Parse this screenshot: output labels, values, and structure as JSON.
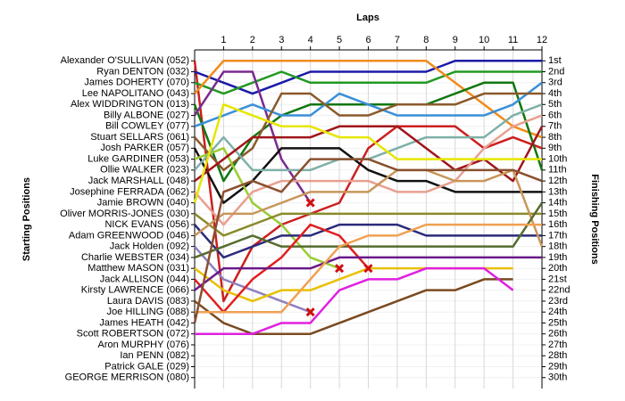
{
  "chart_data": {
    "type": "line",
    "title": "Laps",
    "ylabel": "Starting Positions",
    "y2label": "Finishing Positions",
    "x": [
      0,
      1,
      2,
      3,
      4,
      5,
      6,
      7,
      8,
      9,
      10,
      11,
      12
    ],
    "xlim": [
      0,
      12
    ],
    "xticks": [
      1,
      2,
      3,
      4,
      5,
      6,
      7,
      8,
      9,
      10,
      11,
      12
    ],
    "ylim": [
      31,
      0
    ],
    "grid": true,
    "yticks": [
      {
        "value": 1,
        "label": "Alexander O'SULLIVAN (052)"
      },
      {
        "value": 2,
        "label": "Ryan DENTON (032)"
      },
      {
        "value": 3,
        "label": "James DOHERTY (070)"
      },
      {
        "value": 4,
        "label": "Lee NAPOLITANO (043)"
      },
      {
        "value": 5,
        "label": "Alex WIDDRINGTON (013)"
      },
      {
        "value": 6,
        "label": "Billy ALBONE (027)"
      },
      {
        "value": 7,
        "label": "Bill COWLEY (077)"
      },
      {
        "value": 8,
        "label": "Stuart SELLARS (061)"
      },
      {
        "value": 9,
        "label": "Josh PARKER (057)"
      },
      {
        "value": 10,
        "label": "Luke GARDINER (053)"
      },
      {
        "value": 11,
        "label": "Ollie WALKER (023)"
      },
      {
        "value": 12,
        "label": "Jack MARSHALL (048)"
      },
      {
        "value": 13,
        "label": "Josephine FERRADA (062)"
      },
      {
        "value": 14,
        "label": "Jamie BROWN (040)"
      },
      {
        "value": 15,
        "label": "Oliver MORRIS-JONES (030)"
      },
      {
        "value": 16,
        "label": "NICK EVANS (056)"
      },
      {
        "value": 17,
        "label": "Adam GREENWOOD (046)"
      },
      {
        "value": 18,
        "label": "Jack Holden (092)"
      },
      {
        "value": 19,
        "label": "Charlie WEBSTER (034)"
      },
      {
        "value": 20,
        "label": "Matthew MASON (031)"
      },
      {
        "value": 21,
        "label": "Jack ALLISON (044)"
      },
      {
        "value": 22,
        "label": "Kirsty LAWRENCE (066)"
      },
      {
        "value": 23,
        "label": "Laura DAVIS (083)"
      },
      {
        "value": 24,
        "label": "Joe HILLING (088)"
      },
      {
        "value": 25,
        "label": "James HEATH (042)"
      },
      {
        "value": 26,
        "label": "Scott ROBERTSON (072)"
      },
      {
        "value": 27,
        "label": "Aron MURPHY (076)"
      },
      {
        "value": 28,
        "label": "Ian PENN (082)"
      },
      {
        "value": 29,
        "label": "Patrick GALE (029)"
      },
      {
        "value": 30,
        "label": "GEORGE MERRISON (080)"
      }
    ],
    "y2ticks": [
      {
        "value": 1,
        "label": "1st"
      },
      {
        "value": 2,
        "label": "2nd"
      },
      {
        "value": 3,
        "label": "3rd"
      },
      {
        "value": 4,
        "label": "4th"
      },
      {
        "value": 5,
        "label": "5th"
      },
      {
        "value": 6,
        "label": "6th"
      },
      {
        "value": 7,
        "label": "7th"
      },
      {
        "value": 8,
        "label": "8th"
      },
      {
        "value": 9,
        "label": "9th"
      },
      {
        "value": 10,
        "label": "10th"
      },
      {
        "value": 11,
        "label": "11th"
      },
      {
        "value": 12,
        "label": "12th"
      },
      {
        "value": 13,
        "label": "13th"
      },
      {
        "value": 14,
        "label": "14th"
      },
      {
        "value": 15,
        "label": "15th"
      },
      {
        "value": 16,
        "label": "16th"
      },
      {
        "value": 17,
        "label": "17th"
      },
      {
        "value": 18,
        "label": "18th"
      },
      {
        "value": 19,
        "label": "19th"
      },
      {
        "value": 20,
        "label": "20th"
      },
      {
        "value": 21,
        "label": "21st"
      },
      {
        "value": 22,
        "label": "22nd"
      },
      {
        "value": 23,
        "label": "23rd"
      },
      {
        "value": 24,
        "label": "24th"
      },
      {
        "value": 25,
        "label": "25th"
      },
      {
        "value": 26,
        "label": "26th"
      },
      {
        "value": 27,
        "label": "27th"
      },
      {
        "value": 28,
        "label": "28th"
      },
      {
        "value": 29,
        "label": "29th"
      },
      {
        "value": 30,
        "label": "30th"
      }
    ],
    "series": [
      {
        "color": "#cc1f1f",
        "values": [
          1,
          23,
          18,
          16,
          15,
          14,
          9,
          7,
          7,
          7,
          9,
          8,
          9
        ]
      },
      {
        "color": "#1a1aa8",
        "values": [
          2,
          3,
          4,
          3,
          2,
          2,
          2,
          2,
          2,
          1,
          1,
          1,
          1
        ]
      },
      {
        "color": "#229922",
        "values": [
          3,
          4,
          3,
          2,
          3,
          3,
          3,
          3,
          3,
          2,
          2,
          2,
          2
        ]
      },
      {
        "color": "#f08c1a",
        "values": [
          4,
          1,
          1,
          1,
          1,
          1,
          1,
          1,
          1,
          3,
          5,
          7,
          8
        ]
      },
      {
        "color": "#117711",
        "values": [
          5,
          12,
          8,
          6,
          5,
          5,
          5,
          5,
          5,
          4,
          3,
          3,
          11
        ]
      },
      {
        "color": "#7b2a8f",
        "values": [
          6,
          2,
          2,
          10,
          14,
          null,
          null,
          null,
          null,
          null,
          null,
          null,
          null
        ],
        "retired": true
      },
      {
        "color": "#3a8fd8",
        "values": [
          7,
          6,
          5,
          6,
          6,
          4,
          5,
          6,
          6,
          6,
          6,
          5,
          3
        ]
      },
      {
        "color": "#8b5a2b",
        "values": [
          8,
          11,
          9,
          4,
          4,
          6,
          6,
          5,
          5,
          5,
          4,
          4,
          4
        ]
      },
      {
        "color": "#111111",
        "values": [
          9,
          14,
          12,
          9,
          9,
          9,
          11,
          12,
          12,
          13,
          13,
          13,
          13
        ]
      },
      {
        "color": "#9acd32",
        "values": [
          10,
          9,
          14,
          16,
          19,
          20,
          null,
          null,
          null,
          null,
          null,
          null,
          null
        ],
        "retired": true
      },
      {
        "color": "#7fb0a8",
        "values": [
          11,
          8,
          11,
          11,
          11,
          10,
          10,
          9,
          8,
          8,
          8,
          6,
          5
        ]
      },
      {
        "color": "#a0151a",
        "values": [
          12,
          10,
          8,
          8,
          8,
          7,
          7,
          7,
          9,
          11,
          10,
          12,
          7
        ]
      },
      {
        "color": "#e8a090",
        "values": [
          13,
          16,
          13,
          12,
          12,
          12,
          12,
          13,
          13,
          12,
          9,
          7,
          6
        ]
      },
      {
        "color": "#e6e600",
        "values": [
          14,
          5,
          6,
          7,
          7,
          8,
          8,
          10,
          10,
          10,
          10,
          10,
          10
        ]
      },
      {
        "color": "#8a8a2a",
        "values": [
          15,
          17,
          16,
          15,
          15,
          15,
          15,
          15,
          15,
          15,
          15,
          15,
          15
        ]
      },
      {
        "color": "#2a2a7a",
        "values": [
          16,
          19,
          18,
          17,
          17,
          16,
          16,
          16,
          17,
          17,
          17,
          17,
          17
        ]
      },
      {
        "color": "#c8965a",
        "values": [
          17,
          15,
          15,
          14,
          13,
          13,
          13,
          11,
          11,
          12,
          12,
          11,
          18
        ]
      },
      {
        "color": "#9080c0",
        "values": [
          18,
          21,
          22,
          23,
          24,
          null,
          null,
          null,
          null,
          null,
          null,
          null,
          null
        ],
        "retired": true
      },
      {
        "color": "#556b2f",
        "values": [
          19,
          18,
          17,
          18,
          18,
          18,
          18,
          18,
          18,
          18,
          18,
          18,
          14
        ]
      },
      {
        "color": "#e8c000",
        "values": [
          20,
          22,
          23,
          22,
          22,
          21,
          20,
          20,
          20,
          20,
          20,
          20,
          null
        ]
      },
      {
        "color": "#e02020",
        "values": [
          21,
          24,
          21,
          19,
          16,
          17,
          20,
          null,
          null,
          null,
          null,
          null,
          null
        ],
        "retired": true
      },
      {
        "color": "#6a1a8a",
        "values": [
          22,
          20,
          20,
          20,
          20,
          19,
          19,
          19,
          19,
          19,
          19,
          19,
          19
        ]
      },
      {
        "color": "#7a4a20",
        "values": [
          23,
          25,
          26,
          26,
          26,
          25,
          24,
          23,
          22,
          22,
          21,
          21,
          null
        ]
      },
      {
        "color": "#f0a050",
        "values": [
          24,
          24,
          24,
          24,
          21,
          18,
          17,
          17,
          16,
          16,
          16,
          16,
          16
        ]
      },
      {
        "color": "#8a5030",
        "values": [
          25,
          13,
          12,
          13,
          10,
          10,
          10,
          11,
          11,
          11,
          11,
          11,
          12
        ]
      },
      {
        "color": "#e020e0",
        "values": [
          26,
          26,
          26,
          25,
          25,
          22,
          21,
          21,
          20,
          20,
          20,
          22,
          null
        ]
      }
    ]
  }
}
